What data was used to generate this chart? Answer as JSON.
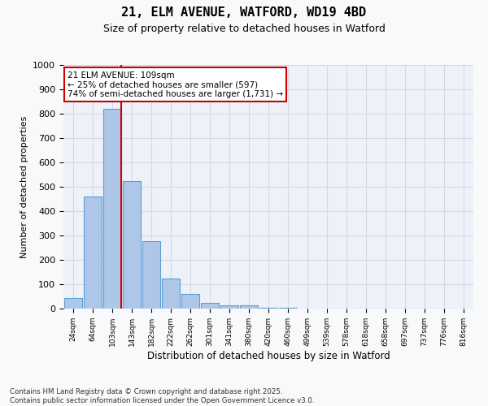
{
  "title1": "21, ELM AVENUE, WATFORD, WD19 4BD",
  "title2": "Size of property relative to detached houses in Watford",
  "xlabel": "Distribution of detached houses by size in Watford",
  "ylabel": "Number of detached properties",
  "bar_values": [
    45,
    460,
    820,
    525,
    278,
    125,
    60,
    22,
    12,
    12,
    5,
    2,
    1,
    0,
    0,
    0,
    0,
    0,
    0,
    0,
    0
  ],
  "bin_labels": [
    "24sqm",
    "64sqm",
    "103sqm",
    "143sqm",
    "182sqm",
    "222sqm",
    "262sqm",
    "301sqm",
    "341sqm",
    "380sqm",
    "420sqm",
    "460sqm",
    "499sqm",
    "539sqm",
    "578sqm",
    "618sqm",
    "658sqm",
    "697sqm",
    "737sqm",
    "776sqm",
    "816sqm"
  ],
  "bar_color": "#aec6e8",
  "bar_edge_color": "#5a9fd4",
  "vline_x_index": 2,
  "vline_color": "#cc0000",
  "annotation_text": "21 ELM AVENUE: 109sqm\n← 25% of detached houses are smaller (597)\n74% of semi-detached houses are larger (1,731) →",
  "annotation_box_color": "#cc0000",
  "ylim": [
    0,
    1000
  ],
  "yticks": [
    0,
    100,
    200,
    300,
    400,
    500,
    600,
    700,
    800,
    900,
    1000
  ],
  "grid_color": "#d0d8e8",
  "footer_text": "Contains HM Land Registry data © Crown copyright and database right 2025.\nContains public sector information licensed under the Open Government Licence v3.0.",
  "bg_color": "#eef2f8",
  "fig_bg_color": "#f8f9fa"
}
